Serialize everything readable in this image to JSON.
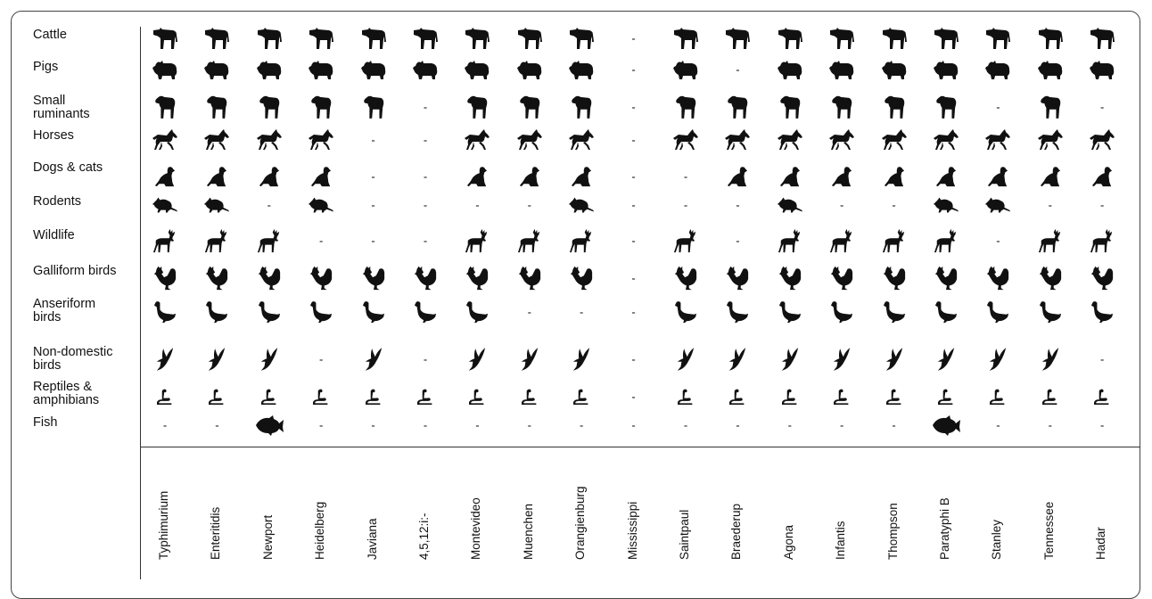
{
  "animals": [
    {
      "label": "Cattle",
      "icon": "cow-icon"
    },
    {
      "label": "Pigs",
      "icon": "pig-icon"
    },
    {
      "label": "Small\nruminants",
      "icon": "sheep-icon"
    },
    {
      "label": "Horses",
      "icon": "horse-icon"
    },
    {
      "label": "Dogs & cats",
      "icon": "dog-icon"
    },
    {
      "label": "Rodents",
      "icon": "rodent-icon"
    },
    {
      "label": "Wildlife",
      "icon": "deer-icon"
    },
    {
      "label": "Galliform birds",
      "icon": "rooster-icon"
    },
    {
      "label": "Anseriform\nbirds",
      "icon": "goose-icon"
    },
    {
      "label": "Non-domestic\nbirds",
      "icon": "bird-icon"
    },
    {
      "label": "Reptiles &\namphibians",
      "icon": "snake-icon"
    },
    {
      "label": "Fish",
      "icon": "fish-icon"
    }
  ],
  "serovars": [
    "Typhimurium",
    "Enteritidis",
    "Newport",
    "Heidelberg",
    "Javiana",
    "4,5,12:i:-",
    "Montevideo",
    "Muenchen",
    "Orangienburg",
    "Mississippi",
    "Saintpaul",
    "Braederup",
    "Agona",
    "Infantis",
    "Thompson",
    "Paratyphi B",
    "Stanley",
    "Tennessee",
    "Hadar"
  ],
  "absent_symbol": "-",
  "presence": [
    [
      1,
      1,
      1,
      1,
      1,
      1,
      1,
      1,
      1,
      0,
      1,
      1,
      1,
      1,
      1,
      1,
      1,
      1,
      1
    ],
    [
      1,
      1,
      1,
      1,
      1,
      1,
      1,
      1,
      1,
      0,
      1,
      0,
      1,
      1,
      1,
      1,
      1,
      1,
      1
    ],
    [
      1,
      1,
      1,
      1,
      1,
      0,
      1,
      1,
      1,
      0,
      1,
      1,
      1,
      1,
      1,
      1,
      0,
      1,
      0
    ],
    [
      1,
      1,
      1,
      1,
      0,
      0,
      1,
      1,
      1,
      0,
      1,
      1,
      1,
      1,
      1,
      1,
      1,
      1,
      1
    ],
    [
      1,
      1,
      1,
      1,
      0,
      0,
      1,
      1,
      1,
      0,
      0,
      1,
      1,
      1,
      1,
      1,
      1,
      1,
      1
    ],
    [
      1,
      1,
      0,
      1,
      0,
      0,
      0,
      0,
      1,
      0,
      0,
      0,
      1,
      0,
      0,
      1,
      1,
      0,
      0
    ],
    [
      1,
      1,
      1,
      0,
      0,
      0,
      1,
      1,
      1,
      0,
      1,
      0,
      1,
      1,
      1,
      1,
      0,
      1,
      1
    ],
    [
      1,
      1,
      1,
      1,
      1,
      1,
      1,
      1,
      1,
      0,
      1,
      1,
      1,
      1,
      1,
      1,
      1,
      1,
      1
    ],
    [
      1,
      1,
      1,
      1,
      1,
      1,
      1,
      0,
      0,
      0,
      1,
      1,
      1,
      1,
      1,
      1,
      1,
      1,
      1
    ],
    [
      1,
      1,
      1,
      0,
      1,
      0,
      1,
      1,
      1,
      0,
      1,
      1,
      1,
      1,
      1,
      1,
      1,
      1,
      0
    ],
    [
      1,
      1,
      1,
      1,
      1,
      1,
      1,
      1,
      1,
      0,
      1,
      1,
      1,
      1,
      1,
      1,
      1,
      1,
      1
    ],
    [
      0,
      0,
      1,
      0,
      0,
      0,
      0,
      0,
      0,
      0,
      0,
      0,
      0,
      0,
      0,
      1,
      0,
      0,
      0
    ]
  ],
  "icon_color": "#111111"
}
